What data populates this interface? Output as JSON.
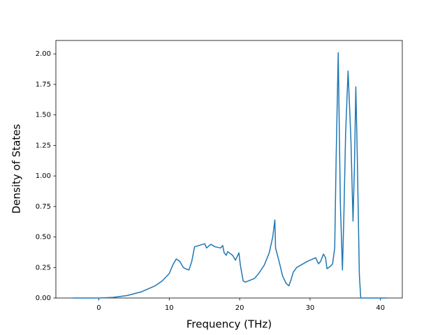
{
  "chart_data": {
    "type": "line",
    "x_label": "Frequency (THz)",
    "y_label": "Density of States",
    "xlim": [
      -6.1,
      43.1
    ],
    "ylim": [
      0,
      2.11
    ],
    "xticks": [
      0,
      10,
      20,
      30,
      40
    ],
    "yticks": [
      {
        "value": 0,
        "label": "0.00"
      },
      {
        "value": 0.25,
        "label": "0.25"
      },
      {
        "value": 0.5,
        "label": "0.50"
      },
      {
        "value": 0.75,
        "label": "0.75"
      },
      {
        "value": 1,
        "label": "1.00"
      },
      {
        "value": 1.25,
        "label": "1.25"
      },
      {
        "value": 1.5,
        "label": "1.50"
      },
      {
        "value": 1.75,
        "label": "1.75"
      },
      {
        "value": 2,
        "label": "2.00"
      }
    ],
    "grid": false,
    "series": [
      {
        "color": "#1f77b4",
        "x": [
          -3.7,
          0,
          2,
          4,
          6,
          8,
          9,
          10,
          10.5,
          11,
          11.5,
          12,
          12.5,
          12.8,
          13.2,
          13.6,
          14.2,
          15.05,
          15.3,
          15.9,
          16.5,
          17.3,
          17.6,
          17.8,
          18.1,
          18.3,
          19,
          19.4,
          19.9,
          20.1,
          20.5,
          20.8,
          22.1,
          22.7,
          23.5,
          24.2,
          24.7,
          25,
          25.1,
          25.6,
          26.1,
          26.6,
          27,
          27.3,
          27.6,
          28.1,
          29.6,
          30.8,
          31.2,
          31.5,
          31.9,
          32.2,
          32.4,
          32.9,
          33.2,
          33.5,
          33.7,
          34,
          34.3,
          34.6,
          34.8,
          35.05,
          35.4,
          35.8,
          36.1,
          36.3,
          36.5,
          36.7,
          37,
          37.2,
          40.9
        ],
        "y": [
          0,
          0,
          0.005,
          0.02,
          0.05,
          0.1,
          0.14,
          0.2,
          0.27,
          0.32,
          0.3,
          0.25,
          0.235,
          0.23,
          0.3,
          0.42,
          0.43,
          0.445,
          0.41,
          0.44,
          0.42,
          0.41,
          0.43,
          0.37,
          0.35,
          0.38,
          0.35,
          0.31,
          0.37,
          0.27,
          0.14,
          0.13,
          0.16,
          0.2,
          0.27,
          0.37,
          0.5,
          0.64,
          0.41,
          0.3,
          0.18,
          0.12,
          0.1,
          0.15,
          0.21,
          0.25,
          0.3,
          0.33,
          0.28,
          0.3,
          0.36,
          0.33,
          0.24,
          0.26,
          0.28,
          0.41,
          1.13,
          2.01,
          0.78,
          0.23,
          0.67,
          1.35,
          1.86,
          1.3,
          0.63,
          1.07,
          1.73,
          1.18,
          0.19,
          0,
          0
        ]
      }
    ]
  }
}
